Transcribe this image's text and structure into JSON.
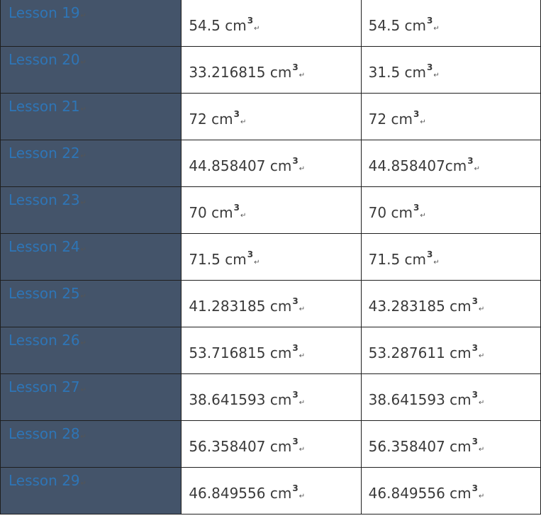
{
  "table": {
    "rows": [
      {
        "lesson": "Lesson 19",
        "value1": "54.5 cm",
        "value2": "54.5 cm"
      },
      {
        "lesson": "Lesson 20",
        "value1": "33.216815 cm",
        "value2": "31.5 cm"
      },
      {
        "lesson": "Lesson 21",
        "value1": "72 cm",
        "value2": "72 cm"
      },
      {
        "lesson": "Lesson 22",
        "value1": "44.858407 cm",
        "value2": "44.858407cm"
      },
      {
        "lesson": "Lesson 23",
        "value1": "70 cm",
        "value2": "70 cm"
      },
      {
        "lesson": "Lesson 24",
        "value1": "71.5 cm",
        "value2": "71.5 cm"
      },
      {
        "lesson": "Lesson 25",
        "value1": "41.283185 cm",
        "value2": "43.283185 cm"
      },
      {
        "lesson": "Lesson 26",
        "value1": "53.716815 cm",
        "value2": "53.287611 cm"
      },
      {
        "lesson": "Lesson 27",
        "value1": "38.641593 cm",
        "value2": "38.641593 cm"
      },
      {
        "lesson": "Lesson 28",
        "value1": "56.358407 cm",
        "value2": "56.358407 cm"
      },
      {
        "lesson": "Lesson 29",
        "value1": "46.849556 cm",
        "value2": "46.849556 cm"
      }
    ],
    "exponent": "3",
    "paragraph_mark": "↵"
  },
  "colors": {
    "lesson_cell_bg": "#44546a",
    "lesson_text": "#2e75b6",
    "value_text": "#3a3a3a",
    "border": "#1f1f1f"
  }
}
